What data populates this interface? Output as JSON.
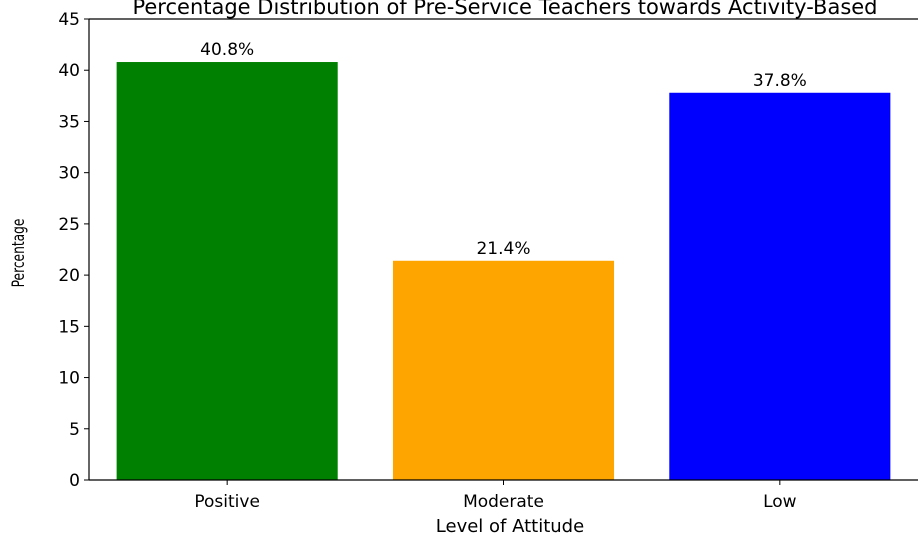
{
  "chart_data": {
    "type": "bar",
    "title": "Percentage Distribution of Pre-Service Teachers towards Activity-Based",
    "xlabel": "Level of Attitude",
    "ylabel": "Percentage",
    "categories": [
      "Positive",
      "Moderate",
      "Low"
    ],
    "values": [
      40.8,
      21.4,
      37.8
    ],
    "data_labels": [
      "40.8%",
      "21.4%",
      "37.8%"
    ],
    "colors": [
      "#008000",
      "#ffa500",
      "#0000ff"
    ],
    "ylim": [
      0,
      45
    ],
    "yticks": [
      0,
      5,
      10,
      15,
      20,
      25,
      30,
      35,
      40,
      45
    ],
    "grid": false,
    "legend": "none"
  }
}
